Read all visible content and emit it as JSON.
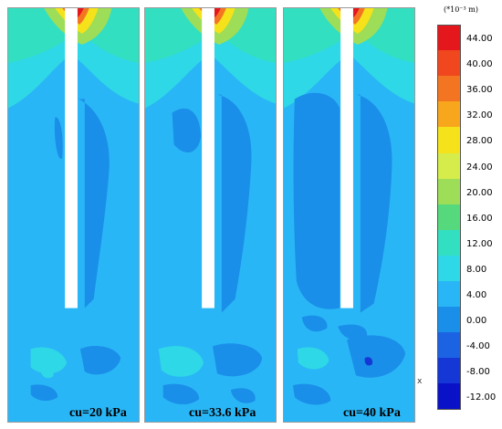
{
  "panels": [
    {
      "caption": "cu=20 kPa"
    },
    {
      "caption": "cu=33.6 kPa"
    },
    {
      "caption": "cu=40 kPa"
    }
  ],
  "colorbar": {
    "unit": "(*10⁻³ m)",
    "levels": [
      {
        "label": "44.00",
        "color": "#e3171c"
      },
      {
        "label": "40.00",
        "color": "#f0471f"
      },
      {
        "label": "36.00",
        "color": "#f47521"
      },
      {
        "label": "32.00",
        "color": "#f8a61c"
      },
      {
        "label": "28.00",
        "color": "#f5e21a"
      },
      {
        "label": "24.00",
        "color": "#d5ec4b"
      },
      {
        "label": "20.00",
        "color": "#9edd57"
      },
      {
        "label": "16.00",
        "color": "#56d97c"
      },
      {
        "label": "12.00",
        "color": "#33dfc1"
      },
      {
        "label": "8.00",
        "color": "#2ed8e6"
      },
      {
        "label": "4.00",
        "color": "#29b6f6"
      },
      {
        "label": "0.00",
        "color": "#1a8fe9"
      },
      {
        "label": "-4.00",
        "color": "#1c63e3"
      },
      {
        "label": "-8.00",
        "color": "#1537d6"
      },
      {
        "label": "-12.00",
        "color": "#0a12c8"
      }
    ]
  },
  "axis_marker": "x"
}
